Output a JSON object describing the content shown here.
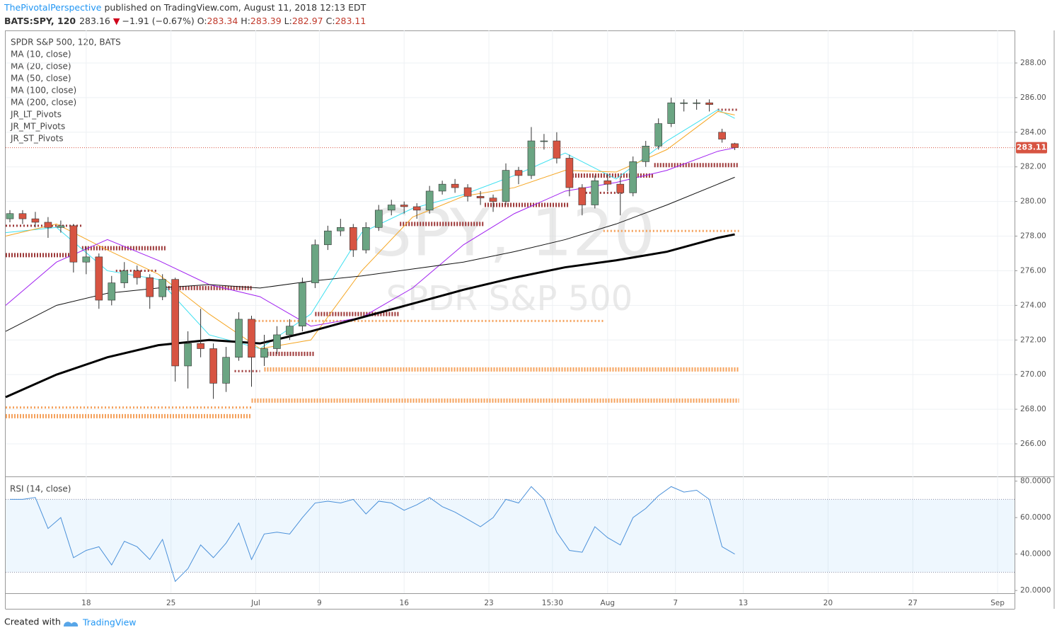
{
  "header": {
    "author": "ThePivotalPerspective",
    "published": " published on TradingView.com, August 11, 2018 12:13 EDT",
    "symbol": "BATS:SPY, 120",
    "last": "283.16",
    "arrow": "▼",
    "change": "−1.91 (−0.67%)",
    "ohlc": [
      {
        "label": "O:",
        "value": "283.34"
      },
      {
        "label": "H:",
        "value": "283.39"
      },
      {
        "label": "L:",
        "value": "282.97"
      },
      {
        "label": "C:",
        "value": "283.11"
      }
    ],
    "indicators": [
      "SPDR S&P 500, 120, BATS",
      "MA (10, close)",
      "MA (20, close)",
      "MA (50, close)",
      "MA (100, close)",
      "MA (200, close)",
      "JR_LT_Pivots",
      "JR_MT_Pivots",
      "JR_ST_Pivots"
    ]
  },
  "chart_data": {
    "type": "candlestick",
    "watermark": "SPY, 120",
    "watermark_sub": "SPDR S&P 500",
    "up_color": "#6ba583",
    "down_color": "#d75442",
    "x": [
      1,
      4,
      7,
      10,
      13,
      16,
      19,
      22,
      25,
      28,
      31,
      34,
      37,
      40,
      43,
      46,
      49,
      52,
      55,
      58,
      61,
      64,
      67,
      70,
      73,
      76,
      79,
      82,
      85,
      88,
      91,
      94,
      97,
      100,
      103,
      106,
      109,
      112,
      115,
      118,
      121,
      124,
      127,
      130,
      133,
      136,
      139,
      142,
      145,
      148,
      151,
      154,
      157,
      160,
      163,
      166,
      169,
      172
    ],
    "open": [
      279.0,
      279.3,
      279.0,
      278.8,
      278.5,
      278.6,
      276.5,
      276.8,
      274.3,
      275.3,
      276.0,
      275.6,
      274.5,
      275.5,
      270.5,
      271.8,
      271.5,
      269.5,
      271.0,
      273.2,
      271.0,
      271.5,
      272.3,
      272.8,
      275.3,
      277.5,
      278.3,
      278.5,
      277.2,
      278.5,
      279.5,
      279.8,
      279.7,
      279.5,
      280.6,
      281.0,
      280.8,
      280.3,
      280.2,
      280.0,
      281.8,
      281.5,
      283.5,
      283.5,
      282.5,
      280.8,
      279.8,
      281.2,
      281.0,
      280.5,
      282.3,
      283.2,
      284.5,
      285.7,
      285.7,
      285.7,
      284.0,
      283.34
    ],
    "high": [
      279.5,
      279.5,
      279.4,
      279.1,
      278.9,
      278.7,
      277.4,
      277.0,
      275.7,
      276.5,
      276.3,
      275.8,
      275.8,
      275.6,
      272.5,
      273.8,
      271.8,
      271.6,
      273.6,
      273.4,
      272.3,
      272.8,
      273.2,
      275.6,
      277.8,
      278.6,
      279.0,
      278.7,
      278.8,
      279.8,
      280.1,
      280.0,
      279.9,
      280.9,
      281.2,
      281.3,
      281.0,
      280.6,
      280.4,
      282.2,
      282.0,
      284.3,
      283.9,
      284.0,
      282.7,
      281.0,
      281.5,
      281.6,
      281.4,
      282.6,
      283.5,
      284.8,
      286.0,
      285.9,
      285.9,
      285.9,
      284.2,
      283.39
    ],
    "low": [
      278.8,
      278.7,
      278.5,
      277.9,
      278.2,
      275.9,
      275.8,
      273.8,
      274.0,
      275.0,
      275.2,
      273.8,
      274.3,
      269.6,
      269.2,
      271.0,
      268.6,
      269.0,
      270.8,
      269.3,
      270.5,
      271.2,
      272.0,
      272.5,
      275.0,
      277.2,
      278.0,
      276.8,
      277.0,
      278.3,
      279.2,
      279.3,
      279.0,
      279.3,
      280.4,
      280.5,
      280.0,
      279.8,
      279.4,
      279.8,
      281.0,
      281.3,
      283.0,
      282.2,
      280.3,
      279.2,
      279.6,
      280.6,
      279.2,
      280.3,
      282.0,
      283.0,
      284.3,
      285.2,
      285.3,
      285.2,
      283.4,
      282.97
    ],
    "close": [
      279.3,
      279.0,
      278.8,
      278.5,
      278.6,
      276.5,
      276.8,
      274.3,
      275.3,
      276.0,
      275.6,
      274.5,
      275.5,
      270.5,
      271.8,
      271.5,
      269.5,
      271.0,
      273.2,
      271.0,
      271.5,
      272.3,
      272.8,
      275.3,
      277.5,
      278.3,
      278.5,
      277.2,
      278.5,
      279.5,
      279.8,
      279.7,
      279.5,
      280.6,
      281.0,
      280.8,
      280.3,
      280.2,
      280.0,
      281.8,
      281.5,
      283.5,
      283.5,
      282.5,
      280.8,
      279.8,
      281.2,
      281.0,
      280.5,
      282.3,
      283.2,
      284.5,
      285.7,
      285.7,
      285.7,
      285.6,
      283.6,
      283.11
    ],
    "last_price": 283.11,
    "last_color": "#d75442",
    "xlim": [
      0,
      238
    ],
    "xticks": [
      {
        "value": 19,
        "label": "18"
      },
      {
        "value": 39,
        "label": "25"
      },
      {
        "value": 59,
        "label": "Jul"
      },
      {
        "value": 74,
        "label": "9"
      },
      {
        "value": 94,
        "label": "16"
      },
      {
        "value": 114,
        "label": "23"
      },
      {
        "value": 129,
        "label": "15:30"
      },
      {
        "value": 142,
        "label": "Aug"
      },
      {
        "value": 158,
        "label": "7"
      },
      {
        "value": 174,
        "label": "13"
      },
      {
        "value": 194,
        "label": "20"
      },
      {
        "value": 214,
        "label": "27"
      },
      {
        "value": 234,
        "label": "Sep"
      }
    ],
    "ylim": [
      264.16,
      289.88
    ],
    "yticks": [
      {
        "value": 266,
        "label": "266.00"
      },
      {
        "value": 268,
        "label": "268.00"
      },
      {
        "value": 270,
        "label": "270.00"
      },
      {
        "value": 272,
        "label": "272.00"
      },
      {
        "value": 274,
        "label": "274.00"
      },
      {
        "value": 276,
        "label": "276.00"
      },
      {
        "value": 278,
        "label": "278.00"
      },
      {
        "value": 280,
        "label": "280.00"
      },
      {
        "value": 282,
        "label": "282.00"
      },
      {
        "value": 284,
        "label": "284.00"
      },
      {
        "value": 286,
        "label": "286.00"
      },
      {
        "value": 288,
        "label": "288.00"
      }
    ],
    "series": [
      {
        "name": "MA (10, close)",
        "color": "#3ee0f0",
        "width": 1,
        "x": [
          0,
          12,
          24,
          36,
          48,
          60,
          72,
          84,
          96,
          108,
          120,
          132,
          144,
          156,
          168,
          172
        ],
        "values": [
          278.2,
          278.5,
          276.0,
          275.5,
          272.3,
          271.5,
          273.5,
          278.2,
          279.6,
          280.4,
          281.5,
          282.8,
          281.3,
          283.5,
          285.3,
          284.8
        ]
      },
      {
        "name": "MA (20, close)",
        "color": "#f5a623",
        "width": 1,
        "x": [
          0,
          12,
          24,
          36,
          48,
          60,
          72,
          84,
          96,
          108,
          120,
          132,
          144,
          156,
          168,
          172
        ],
        "values": [
          278.0,
          278.7,
          277.2,
          275.8,
          273.5,
          271.5,
          272.0,
          276.0,
          279.1,
          280.3,
          280.8,
          281.8,
          281.7,
          283.0,
          285.2,
          285.0
        ]
      },
      {
        "name": "MA (50, close)",
        "color": "#a020f0",
        "width": 1,
        "x": [
          0,
          12,
          24,
          36,
          48,
          60,
          72,
          84,
          96,
          108,
          120,
          132,
          144,
          156,
          168,
          172
        ],
        "values": [
          274.0,
          276.5,
          277.8,
          276.6,
          275.2,
          274.5,
          272.8,
          273.3,
          275.0,
          277.5,
          279.3,
          280.6,
          281.1,
          281.8,
          282.9,
          283.1
        ]
      },
      {
        "name": "MA (100, close)",
        "color": "#111111",
        "width": 1,
        "x": [
          0,
          12,
          24,
          36,
          48,
          60,
          72,
          84,
          96,
          108,
          120,
          132,
          144,
          156,
          168,
          172
        ],
        "values": [
          272.5,
          274.0,
          274.7,
          275.0,
          275.2,
          275.0,
          275.4,
          275.7,
          276.1,
          276.5,
          277.1,
          277.8,
          278.7,
          279.8,
          281.0,
          281.4
        ]
      },
      {
        "name": "MA (200, close)",
        "color": "#000000",
        "width": 3,
        "x": [
          0,
          12,
          24,
          36,
          48,
          60,
          72,
          84,
          96,
          108,
          120,
          132,
          144,
          156,
          168,
          172
        ],
        "values": [
          268.7,
          270.0,
          271.0,
          271.7,
          272.0,
          271.8,
          272.5,
          273.3,
          274.1,
          274.9,
          275.6,
          276.2,
          276.6,
          277.1,
          277.9,
          278.1
        ]
      }
    ],
    "levels": [
      {
        "value": 268.1,
        "start": 0,
        "end": 58,
        "color": "#f5a25d",
        "style": "thin"
      },
      {
        "value": 267.6,
        "start": 0,
        "end": 58,
        "color": "#f5a25d",
        "style": "thick"
      },
      {
        "value": 268.5,
        "start": 58,
        "end": 173,
        "color": "#f5a25d",
        "style": "thick"
      },
      {
        "value": 270.3,
        "start": 61,
        "end": 173,
        "color": "#f5a25d",
        "style": "thick"
      },
      {
        "value": 273.1,
        "start": 58,
        "end": 141,
        "color": "#f5a25d",
        "style": "thin"
      },
      {
        "value": 278.3,
        "start": 141,
        "end": 173,
        "color": "#f5a25d",
        "style": "thin"
      },
      {
        "value": 276.9,
        "start": 0,
        "end": 16,
        "color": "#9e3a3a",
        "style": "thick"
      },
      {
        "value": 277.3,
        "start": 18,
        "end": 38,
        "color": "#9e3a3a",
        "style": "thick"
      },
      {
        "value": 275.0,
        "start": 37,
        "end": 58,
        "color": "#9e3a3a",
        "style": "thick"
      },
      {
        "value": 271.2,
        "start": 61,
        "end": 73,
        "color": "#9e3a3a",
        "style": "thick"
      },
      {
        "value": 273.5,
        "start": 73,
        "end": 93,
        "color": "#9e3a3a",
        "style": "thick"
      },
      {
        "value": 278.7,
        "start": 93,
        "end": 113,
        "color": "#9e3a3a",
        "style": "thick"
      },
      {
        "value": 279.8,
        "start": 113,
        "end": 133,
        "color": "#9e3a3a",
        "style": "thick"
      },
      {
        "value": 281.5,
        "start": 133,
        "end": 153,
        "color": "#9e3a3a",
        "style": "thick"
      },
      {
        "value": 282.1,
        "start": 153,
        "end": 173,
        "color": "#9e3a3a",
        "style": "thick"
      },
      {
        "value": 285.3,
        "start": 168,
        "end": 173,
        "color": "#9e3a3a",
        "style": "thin"
      },
      {
        "value": 278.6,
        "start": 0,
        "end": 18,
        "color": "#9e3a3a",
        "style": "thin"
      },
      {
        "value": 276.0,
        "start": 26,
        "end": 36,
        "color": "#9e3a3a",
        "style": "thin"
      },
      {
        "value": 270.2,
        "start": 54,
        "end": 60,
        "color": "#9e3a3a",
        "style": "thin"
      },
      {
        "value": 280.5,
        "start": 136,
        "end": 146,
        "color": "#9e3a3a",
        "style": "thin"
      }
    ],
    "rsi": {
      "label": "RSI (14, close)",
      "color": "#4a90d9",
      "values": [
        70,
        70,
        71,
        54,
        60,
        38,
        42,
        44,
        34,
        47,
        44,
        37,
        48,
        25,
        32,
        45,
        38,
        46,
        57,
        37,
        51,
        52,
        51,
        60,
        68,
        69,
        68,
        70,
        62,
        69,
        68,
        64,
        67,
        71,
        66,
        63,
        59,
        55,
        60,
        70,
        68,
        77,
        70,
        52,
        42,
        41,
        55,
        49,
        45,
        60,
        65,
        72,
        77,
        74,
        75,
        70,
        44,
        40
      ],
      "ylim": [
        18.5,
        81.8
      ],
      "band": [
        30,
        70
      ],
      "yticks": [
        {
          "value": 20,
          "label": "20.0000"
        },
        {
          "value": 40,
          "label": "40.0000"
        },
        {
          "value": 60,
          "label": "60.0000"
        },
        {
          "value": 80,
          "label": "80.0000"
        }
      ]
    }
  },
  "footer": {
    "created": "Created with",
    "brand": "TradingView"
  }
}
